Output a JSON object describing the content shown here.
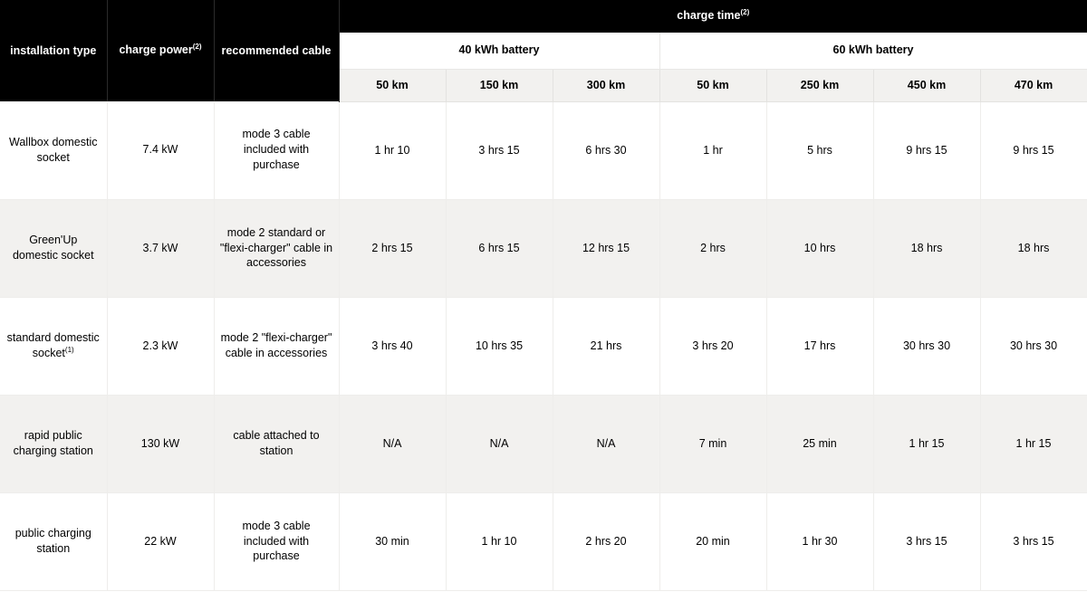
{
  "headers": {
    "installation": "installation type",
    "power": "charge power",
    "power_sup": "(2)",
    "cable": "recommended cable",
    "charge_time": "charge time",
    "charge_time_sup": "(2)",
    "battery_groups": [
      "40 kWh battery",
      "60 kWh battery"
    ],
    "km_40": [
      "50 km",
      "150 km",
      "300 km"
    ],
    "km_60": [
      "50 km",
      "250 km",
      "450 km",
      "470 km"
    ]
  },
  "rows": [
    {
      "inst": "Wallbox domestic socket",
      "inst_sup": "",
      "power": "7.4 kW",
      "cable": "mode 3 cable included with purchase",
      "t": [
        "1 hr 10",
        "3 hrs 15",
        "6 hrs 30",
        "1 hr",
        "5 hrs",
        "9 hrs 15",
        "9 hrs 15"
      ]
    },
    {
      "inst": "Green'Up domestic socket",
      "inst_sup": "",
      "power": "3.7 kW",
      "cable": "mode 2 standard or \"flexi-charger\" cable in accessories",
      "t": [
        "2 hrs 15",
        "6 hrs 15",
        "12 hrs 15",
        "2 hrs",
        "10 hrs",
        "18 hrs",
        "18 hrs"
      ]
    },
    {
      "inst": "standard domestic socket",
      "inst_sup": "(1)",
      "power": "2.3 kW",
      "cable": "mode 2 \"flexi-charger\" cable in accessories",
      "t": [
        "3 hrs 40",
        "10 hrs 35",
        "21 hrs",
        "3 hrs 20",
        "17 hrs",
        "30 hrs 30",
        "30 hrs 30"
      ]
    },
    {
      "inst": "rapid public charging station",
      "inst_sup": "",
      "power": "130 kW",
      "cable": "cable attached to station",
      "t": [
        "N/A",
        "N/A",
        "N/A",
        "7 min",
        "25 min",
        "1 hr 15",
        "1 hr 15"
      ]
    },
    {
      "inst": "public charging station",
      "inst_sup": "",
      "power": "22 kW",
      "cable": "mode 3 cable included with purchase",
      "t": [
        "30 min",
        "1 hr 10",
        "2 hrs 20",
        "20 min",
        "1 hr 30",
        "3 hrs 15",
        "3 hrs 15"
      ]
    }
  ],
  "style": {
    "row_bg_even": "#ffffff",
    "row_bg_odd": "#f2f1ef",
    "header_black": "#000000",
    "border": "#eeedeb",
    "font_size_pt": 9
  }
}
